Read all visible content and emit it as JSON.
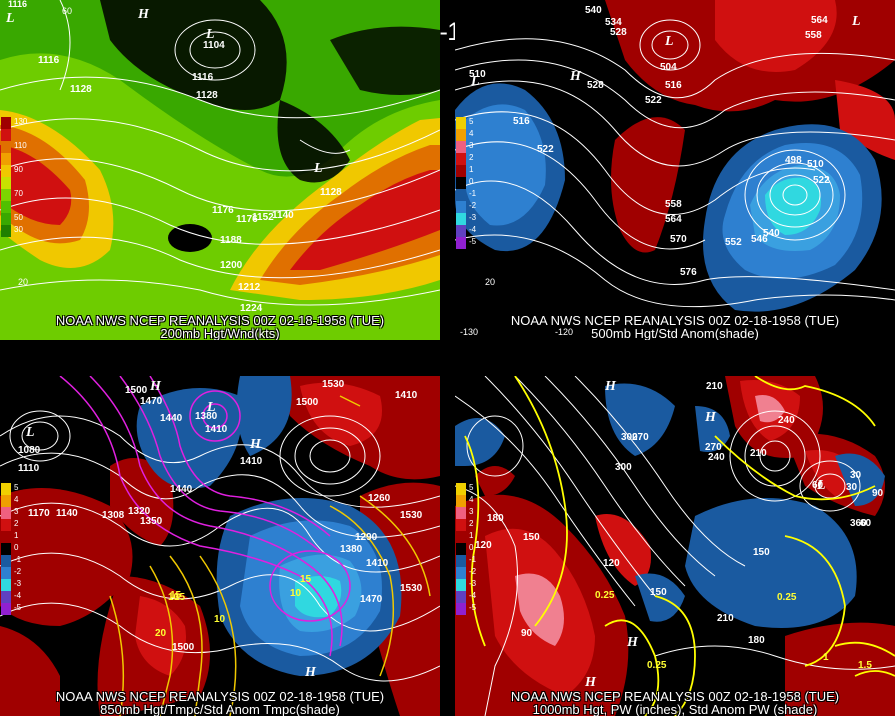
{
  "header": {
    "title": "00Z 02-18-1958 (TUE)"
  },
  "panels": {
    "p1": {
      "line1": "NOAA NWS NCEP REANALYSIS 00Z 02-18-1958 (TUE)",
      "line2": "200mb Hgt/Wnd(kts)",
      "legend": [
        "130",
        "110",
        "90",
        "70",
        "50",
        "30"
      ],
      "contour_labels": [
        "1116",
        "1116",
        "1128",
        "1128",
        "1104",
        "1176",
        "1188",
        "1200",
        "1212",
        "1224",
        "1140",
        "1152",
        "1128",
        "1176",
        "1116"
      ],
      "lat_labels": [
        "20"
      ],
      "lon_labels": [
        "60"
      ],
      "hl_labels": [
        "L",
        "H",
        "L",
        "L"
      ]
    },
    "p2": {
      "line1": "NOAA NWS NCEP REANALYSIS 00Z 02-18-1958 (TUE)",
      "line2": "500mb Hgt/Std Anom(shade)",
      "legend": [
        "5",
        "4",
        "3",
        "2",
        "1",
        "0",
        "-1",
        "-2",
        "-3",
        "-4",
        "-5"
      ],
      "contour_labels": [
        "540",
        "534",
        "528",
        "564",
        "558",
        "510",
        "516",
        "522",
        "528",
        "522",
        "516",
        "504",
        "558",
        "564",
        "570",
        "576",
        "552",
        "546",
        "540",
        "498",
        "510",
        "522"
      ],
      "lat_labels": [
        "20"
      ],
      "lon_labels": [
        "-120",
        "-130"
      ],
      "hl_labels": [
        "L",
        "H",
        "L",
        "H",
        "L"
      ]
    },
    "p3": {
      "line1": "NOAA NWS NCEP REANALYSIS 00Z 02-18-1958 (TUE)",
      "line2": "850mb Hgt/Tmpc/Std Anom Tmpc(shade)",
      "legend": [
        "5",
        "4",
        "3",
        "2",
        "1",
        "0",
        "-1",
        "-2",
        "-3",
        "-4",
        "-5"
      ],
      "contour_labels": [
        "1500",
        "1470",
        "1440",
        "1410",
        "1380",
        "1530",
        "1500",
        "1410",
        "1080",
        "1110",
        "1170",
        "1140",
        "1308",
        "1320",
        "1350",
        "1410",
        "1260",
        "1290",
        "1380",
        "1410",
        "1530",
        "1470",
        "1530",
        "1500",
        "1440"
      ],
      "temp_labels": [
        "10",
        "15",
        "10",
        "15",
        "20",
        "15",
        "10"
      ],
      "hl_labels": [
        "L",
        "H",
        "L",
        "H",
        "H"
      ]
    },
    "p4": {
      "line1": "NOAA NWS NCEP REANALYSIS 00Z 02-18-1958 (TUE)",
      "line2": "1000mb Hgt, PW (inches), Std Anom PW (shade)",
      "legend": [
        "5",
        "4",
        "3",
        "2",
        "1",
        "0",
        "-1",
        "-2",
        "-3",
        "-4",
        "-5"
      ],
      "contour_labels": [
        "210",
        "240",
        "300",
        "270",
        "270",
        "240",
        "210",
        "180",
        "120",
        "150",
        "60",
        "30",
        "90",
        "30",
        "60",
        "150",
        "120",
        "90",
        "150",
        "180",
        "210",
        "240",
        "300",
        "360"
      ],
      "pw_labels": [
        "0.25",
        "0.25",
        "0.25",
        "1",
        "1.5"
      ],
      "hl_labels": [
        "H",
        "H",
        "L",
        "H",
        "H"
      ]
    }
  },
  "colors": {
    "green": "#39a800",
    "lightgreen": "#7cd400",
    "yellow": "#f0c800",
    "orange": "#e07000",
    "red": "#d01010",
    "darkred": "#a00000",
    "blue": "#2070c0",
    "lightblue": "#3aa0e0",
    "cyan": "#30d8e0",
    "magenta": "#e020e0",
    "contour_yellow": "#ffff00"
  }
}
